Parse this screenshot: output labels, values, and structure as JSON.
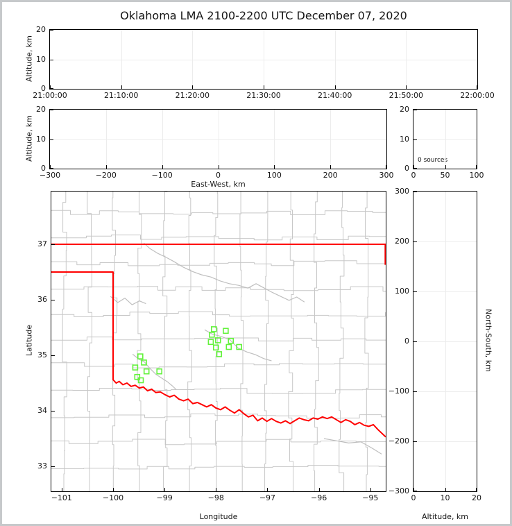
{
  "title": "Oklahoma LMA 2100-2200 UTC December 07, 2020",
  "colors": {
    "station_marker": "#63f23c",
    "state_border": "#ff0000",
    "county_line": "#c7c7c7",
    "river_line": "#bfbfbf",
    "gridline": "#ececec",
    "frame": "#c6c9cb",
    "text": "#141414"
  },
  "panels": {
    "time_height": {
      "ylabel": "Altitude, km",
      "x": {
        "lim": [
          0,
          6
        ],
        "grid": [
          1,
          2,
          3,
          4,
          5
        ],
        "ticks": [
          {
            "v": 0,
            "label": "21:00:00"
          },
          {
            "v": 1,
            "label": "21:10:00"
          },
          {
            "v": 2,
            "label": "21:20:00"
          },
          {
            "v": 3,
            "label": "21:30:00"
          },
          {
            "v": 4,
            "label": "21:40:00"
          },
          {
            "v": 5,
            "label": "21:50:00"
          },
          {
            "v": 6,
            "label": "22:00:00"
          }
        ]
      },
      "y": {
        "lim": [
          0,
          20
        ],
        "grid": [
          10
        ],
        "ticks": [
          {
            "v": 0,
            "label": "0"
          },
          {
            "v": 10,
            "label": "10"
          },
          {
            "v": 20,
            "label": "20"
          }
        ]
      }
    },
    "ew_height": {
      "xlabel": "East-West, km",
      "ylabel": "Altitude, km",
      "x": {
        "lim": [
          -300,
          300
        ],
        "grid": [
          -200,
          -100,
          0,
          100,
          200
        ],
        "ticks": [
          {
            "v": -300,
            "label": "−300"
          },
          {
            "v": -200,
            "label": "−200"
          },
          {
            "v": -100,
            "label": "−100"
          },
          {
            "v": 0,
            "label": "0"
          },
          {
            "v": 100,
            "label": "100"
          },
          {
            "v": 200,
            "label": "200"
          },
          {
            "v": 300,
            "label": "300"
          }
        ]
      },
      "y": {
        "lim": [
          0,
          20
        ],
        "grid": [
          10
        ],
        "ticks": [
          {
            "v": 0,
            "label": "0"
          },
          {
            "v": 10,
            "label": "10"
          },
          {
            "v": 20,
            "label": "20"
          }
        ]
      }
    },
    "alt_histogram": {
      "annotation": "0 sources",
      "x": {
        "lim": [
          0,
          100
        ],
        "grid": [
          50
        ],
        "ticks": [
          {
            "v": 0,
            "label": "0"
          },
          {
            "v": 50,
            "label": "50"
          },
          {
            "v": 100,
            "label": "100"
          }
        ]
      },
      "y": {
        "lim": [
          0,
          20
        ],
        "grid": [
          10
        ],
        "ticks": [
          {
            "v": 0,
            "label": "0"
          },
          {
            "v": 10,
            "label": "10"
          },
          {
            "v": 20,
            "label": "20"
          }
        ]
      }
    },
    "map": {
      "xlabel": "Longitude",
      "ylabel": "Latitude",
      "x": {
        "lim": [
          -101.2,
          -94.7
        ],
        "grid": [],
        "ticks": [
          {
            "v": -101,
            "label": "−101"
          },
          {
            "v": -100,
            "label": "−100"
          },
          {
            "v": -99,
            "label": "−99"
          },
          {
            "v": -98,
            "label": "−98"
          },
          {
            "v": -97,
            "label": "−97"
          },
          {
            "v": -96,
            "label": "−96"
          },
          {
            "v": -95,
            "label": "−95"
          }
        ]
      },
      "y": {
        "lim": [
          32.55,
          37.95
        ],
        "grid": [],
        "ticks": [
          {
            "v": 33,
            "label": "33"
          },
          {
            "v": 34,
            "label": "34"
          },
          {
            "v": 35,
            "label": "35"
          },
          {
            "v": 36,
            "label": "36"
          },
          {
            "v": 37,
            "label": "37"
          }
        ]
      }
    },
    "ns_height": {
      "xlabel": "Altitude, km",
      "ylabel": "North-South, km",
      "ylabel_side": "right",
      "x": {
        "lim": [
          0,
          20
        ],
        "grid": [
          10
        ],
        "ticks": [
          {
            "v": 0,
            "label": "0"
          },
          {
            "v": 10,
            "label": "10"
          },
          {
            "v": 20,
            "label": "20"
          }
        ]
      },
      "y": {
        "lim": [
          -300,
          300
        ],
        "grid": [
          -200,
          -100,
          0,
          100,
          200
        ],
        "ticks": [
          {
            "v": 300,
            "label": "300"
          },
          {
            "v": 200,
            "label": "200"
          },
          {
            "v": 100,
            "label": "100"
          },
          {
            "v": 0,
            "label": "0"
          },
          {
            "v": -100,
            "label": "−100"
          },
          {
            "v": -200,
            "label": "−200"
          },
          {
            "v": -300,
            "label": "−300"
          }
        ]
      }
    }
  },
  "chart_data": {
    "type": "scatter",
    "title": "Oklahoma LMA 2100-2200 UTC December 07, 2020",
    "source_count": 0,
    "lma_sources": [],
    "notes": "All four source panels are empty (0 sources). Plan-view map shows Oklahoma state border (red), county lines and rivers (gray), and LMA station locations (green open squares).",
    "map_xlim": [
      -101.2,
      -94.7
    ],
    "map_ylim": [
      32.55,
      37.95
    ],
    "stations_lon_lat": [
      [
        -99.47,
        34.98
      ],
      [
        -99.4,
        34.87
      ],
      [
        -99.57,
        34.78
      ],
      [
        -99.35,
        34.71
      ],
      [
        -99.1,
        34.71
      ],
      [
        -99.53,
        34.61
      ],
      [
        -99.46,
        34.55
      ],
      [
        -98.04,
        35.47
      ],
      [
        -97.81,
        35.44
      ],
      [
        -98.08,
        35.37
      ],
      [
        -97.96,
        35.27
      ],
      [
        -98.1,
        35.24
      ],
      [
        -97.71,
        35.26
      ],
      [
        -98.0,
        35.14
      ],
      [
        -97.75,
        35.15
      ],
      [
        -97.55,
        35.15
      ],
      [
        -97.94,
        35.02
      ]
    ],
    "oklahoma_border": {
      "north": [
        [
          -101.2,
          37.0
        ],
        [
          -94.7,
          37.0
        ]
      ],
      "northeast_edge": [
        [
          -94.71,
          37.0
        ],
        [
          -94.71,
          36.63
        ]
      ],
      "west_panhandle_and_red_river": [
        [
          -101.2,
          36.5
        ],
        [
          -100.0,
          36.5
        ],
        [
          -100.0,
          34.56
        ],
        [
          -99.94,
          34.5
        ],
        [
          -99.88,
          34.53
        ],
        [
          -99.81,
          34.47
        ],
        [
          -99.73,
          34.5
        ],
        [
          -99.65,
          34.44
        ],
        [
          -99.57,
          34.46
        ],
        [
          -99.49,
          34.41
        ],
        [
          -99.41,
          34.43
        ],
        [
          -99.33,
          34.36
        ],
        [
          -99.25,
          34.39
        ],
        [
          -99.17,
          34.33
        ],
        [
          -99.08,
          34.34
        ],
        [
          -98.99,
          34.29
        ],
        [
          -98.9,
          34.25
        ],
        [
          -98.81,
          34.28
        ],
        [
          -98.72,
          34.21
        ],
        [
          -98.63,
          34.18
        ],
        [
          -98.54,
          34.21
        ],
        [
          -98.45,
          34.13
        ],
        [
          -98.36,
          34.15
        ],
        [
          -98.27,
          34.11
        ],
        [
          -98.18,
          34.07
        ],
        [
          -98.09,
          34.11
        ],
        [
          -98.0,
          34.05
        ],
        [
          -97.91,
          34.02
        ],
        [
          -97.82,
          34.07
        ],
        [
          -97.73,
          34.01
        ],
        [
          -97.64,
          33.96
        ],
        [
          -97.55,
          34.02
        ],
        [
          -97.46,
          33.95
        ],
        [
          -97.37,
          33.89
        ],
        [
          -97.28,
          33.92
        ],
        [
          -97.19,
          33.82
        ],
        [
          -97.1,
          33.87
        ],
        [
          -97.01,
          33.81
        ],
        [
          -96.92,
          33.86
        ],
        [
          -96.83,
          33.81
        ],
        [
          -96.74,
          33.78
        ],
        [
          -96.65,
          33.82
        ],
        [
          -96.56,
          33.77
        ],
        [
          -96.47,
          33.82
        ],
        [
          -96.38,
          33.87
        ],
        [
          -96.29,
          33.84
        ],
        [
          -96.2,
          33.82
        ],
        [
          -96.11,
          33.87
        ],
        [
          -96.02,
          33.85
        ],
        [
          -95.93,
          33.89
        ],
        [
          -95.84,
          33.86
        ],
        [
          -95.75,
          33.89
        ],
        [
          -95.66,
          33.84
        ],
        [
          -95.57,
          33.79
        ],
        [
          -95.48,
          33.84
        ],
        [
          -95.39,
          33.81
        ],
        [
          -95.3,
          33.75
        ],
        [
          -95.21,
          33.79
        ],
        [
          -95.12,
          33.74
        ],
        [
          -95.03,
          33.72
        ],
        [
          -94.94,
          33.75
        ],
        [
          -94.85,
          33.66
        ],
        [
          -94.7,
          33.53
        ]
      ]
    },
    "rivers": [
      [
        [
          -99.4,
          37.02
        ],
        [
          -99.28,
          36.92
        ],
        [
          -99.14,
          36.84
        ],
        [
          -98.98,
          36.77
        ],
        [
          -98.82,
          36.69
        ],
        [
          -98.64,
          36.59
        ],
        [
          -98.46,
          36.51
        ],
        [
          -98.28,
          36.45
        ],
        [
          -98.1,
          36.41
        ],
        [
          -97.92,
          36.34
        ],
        [
          -97.74,
          36.29
        ],
        [
          -97.56,
          36.26
        ],
        [
          -97.38,
          36.21
        ],
        [
          -97.22,
          36.29
        ],
        [
          -97.06,
          36.21
        ],
        [
          -96.9,
          36.13
        ],
        [
          -96.74,
          36.06
        ],
        [
          -96.58,
          35.99
        ],
        [
          -96.43,
          36.05
        ],
        [
          -96.28,
          35.96
        ]
      ],
      [
        [
          -100.05,
          36.06
        ],
        [
          -99.91,
          35.95
        ],
        [
          -99.77,
          36.03
        ],
        [
          -99.63,
          35.91
        ],
        [
          -99.49,
          35.98
        ],
        [
          -99.36,
          35.93
        ]
      ],
      [
        [
          -99.62,
          35.02
        ],
        [
          -99.5,
          34.93
        ],
        [
          -99.39,
          34.88
        ],
        [
          -99.29,
          34.77
        ],
        [
          -99.17,
          34.66
        ],
        [
          -99.04,
          34.58
        ],
        [
          -98.94,
          34.52
        ],
        [
          -98.85,
          34.45
        ],
        [
          -98.77,
          34.38
        ]
      ],
      [
        [
          -98.22,
          35.46
        ],
        [
          -98.07,
          35.38
        ],
        [
          -97.9,
          35.34
        ],
        [
          -97.73,
          35.28
        ],
        [
          -97.57,
          35.13
        ],
        [
          -97.4,
          35.06
        ],
        [
          -97.23,
          35.01
        ],
        [
          -97.07,
          34.94
        ],
        [
          -96.92,
          34.9
        ]
      ],
      [
        [
          -95.9,
          33.5
        ],
        [
          -95.66,
          33.46
        ],
        [
          -95.42,
          33.42
        ],
        [
          -95.18,
          33.44
        ],
        [
          -94.97,
          33.33
        ],
        [
          -94.78,
          33.22
        ]
      ]
    ],
    "county_grid": {
      "note": "approximate county boundary grid",
      "h_spacing_deg": 0.46,
      "v_spacing_deg": 0.49
    }
  }
}
